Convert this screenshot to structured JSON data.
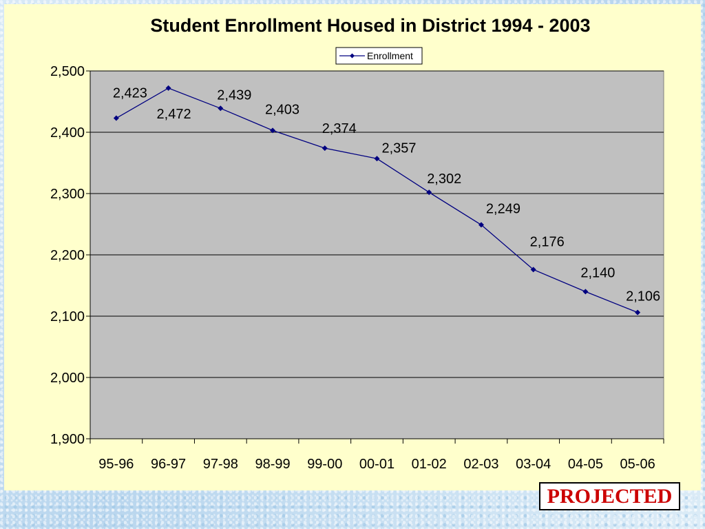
{
  "chart_data": {
    "type": "line",
    "title": "Student Enrollment Housed in District 1994 - 2003",
    "xlabel": "",
    "ylabel": "",
    "categories": [
      "95-96",
      "96-97",
      "97-98",
      "98-99",
      "99-00",
      "00-01",
      "01-02",
      "02-03",
      "03-04",
      "04-05",
      "05-06"
    ],
    "series": [
      {
        "name": "Enrollment",
        "values": [
          2423,
          2472,
          2439,
          2403,
          2374,
          2357,
          2302,
          2249,
          2176,
          2140,
          2106
        ],
        "labels": [
          "2,423",
          "2,472",
          "2,439",
          "2,403",
          "2,374",
          "2,357",
          "2,302",
          "2,249",
          "2,176",
          "2,140",
          "2,106"
        ]
      }
    ],
    "ylim": [
      1900,
      2500
    ],
    "yticks": [
      1900,
      2000,
      2100,
      2200,
      2300,
      2400,
      2500
    ],
    "ytick_labels": [
      "1,900",
      "2,000",
      "2,100",
      "2,200",
      "2,300",
      "2,400",
      "2,500"
    ],
    "grid": true,
    "legend_position": "top-center",
    "colors": {
      "series_line": "#000080",
      "plot_background": "#c0c0c0",
      "panel_background": "#ffffcc"
    }
  },
  "stamp": {
    "text": "PROJECTED",
    "color": "#cc0000"
  }
}
